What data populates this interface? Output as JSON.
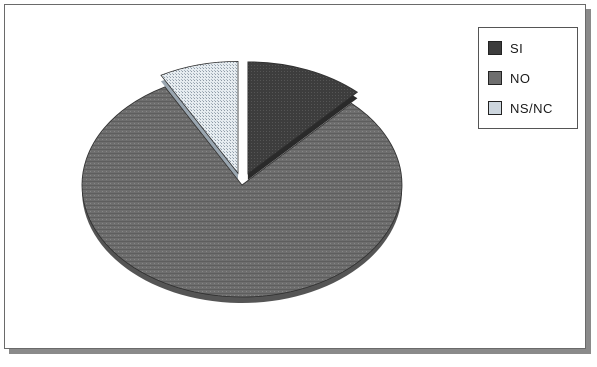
{
  "chart_data": {
    "type": "pie",
    "title": "",
    "slices": [
      {
        "label": "SI",
        "value": 12,
        "color": "#3d3d3d",
        "exploded": true
      },
      {
        "label": "NO",
        "value": 80,
        "color": "#6e6e6e",
        "exploded": false
      },
      {
        "label": "NS/NC",
        "value": 8,
        "color": "#cdd6de",
        "exploded": true
      }
    ],
    "style": "3d-tilted",
    "legend_position": "top-right",
    "legend": [
      "SI",
      "NO",
      "NS/NC"
    ]
  }
}
